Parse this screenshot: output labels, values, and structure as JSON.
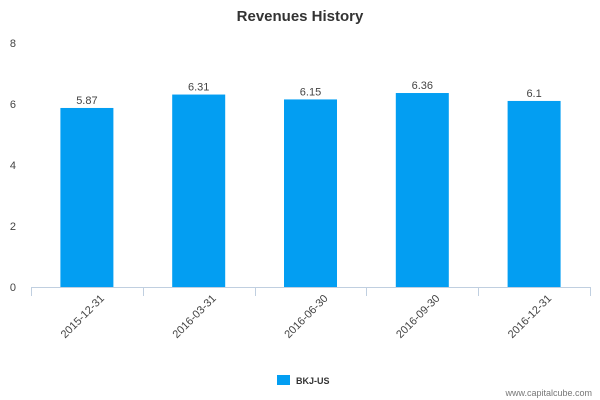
{
  "chart_data": {
    "type": "bar",
    "title": "Revenues History",
    "categories": [
      "2015-12-31",
      "2016-03-31",
      "2016-06-30",
      "2016-09-30",
      "2016-12-31"
    ],
    "series": [
      {
        "name": "BKJ-US",
        "values": [
          5.87,
          6.31,
          6.15,
          6.36,
          6.1
        ],
        "labels": [
          "5.87",
          "6.31",
          "6.15",
          "6.36",
          "6.1"
        ]
      }
    ],
    "ylim": [
      0,
      8
    ],
    "yticks": [
      "0",
      "2",
      "4",
      "6",
      "8"
    ],
    "xlabel": "",
    "ylabel": "",
    "grid": false,
    "legend_position": "bottom-center"
  },
  "colors": {
    "bar": "#039ef2",
    "axis": "#c0cfe0",
    "text": "#444444"
  },
  "watermark": "www.capitalcube.com"
}
